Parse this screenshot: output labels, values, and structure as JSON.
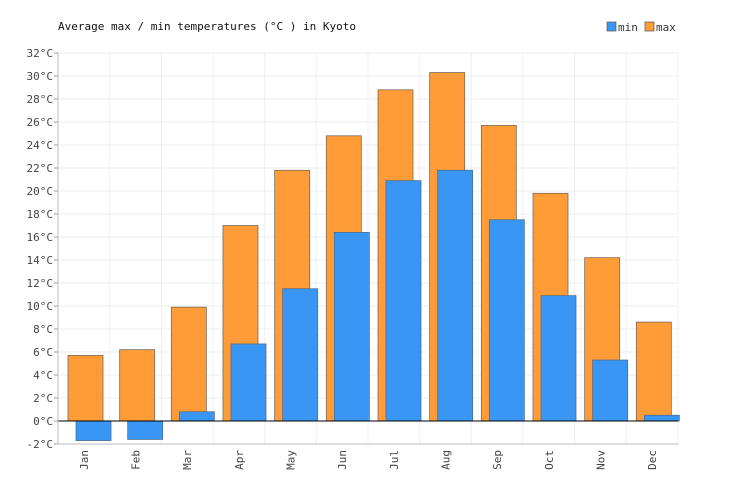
{
  "chart_data": {
    "type": "bar",
    "title": "Average max / min temperatures (°C ) in Kyoto",
    "categories": [
      "Jan",
      "Feb",
      "Mar",
      "Apr",
      "May",
      "Jun",
      "Jul",
      "Aug",
      "Sep",
      "Oct",
      "Nov",
      "Dec"
    ],
    "series": [
      {
        "name": "min",
        "color": "#3a96f5",
        "values": [
          -1.7,
          -1.6,
          0.8,
          6.7,
          11.5,
          16.4,
          20.9,
          21.8,
          17.5,
          10.9,
          5.3,
          0.5
        ]
      },
      {
        "name": "max",
        "color": "#ff9c38",
        "values": [
          5.7,
          6.2,
          9.9,
          17.0,
          21.8,
          24.8,
          28.8,
          30.3,
          25.7,
          19.8,
          14.2,
          8.6
        ]
      }
    ],
    "ylim": [
      -2,
      32
    ],
    "ytick_step": 2,
    "ytick_format": "{v}°C",
    "grid": true,
    "legend": "top-right",
    "xlabel": "",
    "ylabel": ""
  }
}
